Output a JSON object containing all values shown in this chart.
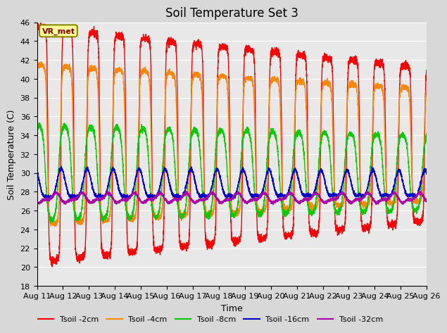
{
  "title": "Soil Temperature Set 3",
  "xlabel": "Time",
  "ylabel": "Soil Temperature (C)",
  "ylim": [
    18,
    46
  ],
  "yticks": [
    18,
    20,
    22,
    24,
    26,
    28,
    30,
    32,
    34,
    36,
    38,
    40,
    42,
    44,
    46
  ],
  "x_start": 0,
  "x_end": 15,
  "n_points": 5000,
  "series_order": [
    "Tsoil -2cm",
    "Tsoil -4cm",
    "Tsoil -8cm",
    "Tsoil -16cm",
    "Tsoil -32cm"
  ],
  "colors": {
    "Tsoil -2cm": "#ff0000",
    "Tsoil -4cm": "#ff8800",
    "Tsoil -8cm": "#00cc00",
    "Tsoil -16cm": "#0000cc",
    "Tsoil -32cm": "#aa00aa"
  },
  "lw": 1.0,
  "bg_color": "#e8e8e8",
  "grid_color": "#ffffff",
  "title_fontsize": 12,
  "label_fontsize": 9,
  "tick_fontsize": 8,
  "annotation_text": "VR_met",
  "xtick_labels": [
    "Aug 11",
    "Aug 12",
    "Aug 13",
    "Aug 14",
    "Aug 15",
    "Aug 16",
    "Aug 17",
    "Aug 18",
    "Aug 19",
    "Aug 20",
    "Aug 21",
    "Aug 22",
    "Aug 23",
    "Aug 24",
    "Aug 25",
    "Aug 26"
  ],
  "xtick_positions": [
    0,
    1,
    2,
    3,
    4,
    5,
    6,
    7,
    8,
    9,
    10,
    11,
    12,
    13,
    14,
    15
  ]
}
